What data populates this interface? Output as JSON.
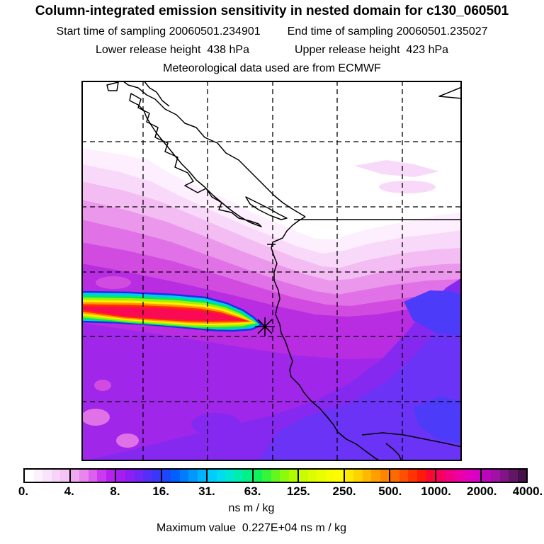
{
  "header": {
    "title": "Column-integrated emission sensitivity in nested domain for c130_060501",
    "start_time": "Start time of sampling 20060501.234901",
    "end_time": "End time of sampling 20060501.235027",
    "lower_release": "Lower release height  438 hPa",
    "upper_release": "Upper release height  423 hPa",
    "met_source": "Meteorological data used are from ECMWF"
  },
  "chart_data": {
    "type": "heatmap",
    "title": "Column-integrated emission sensitivity in nested domain for c130_060501",
    "field": "column-integrated emission sensitivity (FLEXPART footprint)",
    "units": "ns m / kg",
    "sampling": {
      "start": "20060501.234901",
      "end": "20060501.235027"
    },
    "release_heights_hPa": {
      "lower": 438,
      "upper": 423
    },
    "met_data_source": "ECMWF",
    "maximum_value": "0.227E+04",
    "maximum_value_label": "Maximum value  0.227E+04 ns m / kg",
    "colorbar": {
      "units": "ns m / kg",
      "boundaries": [
        0,
        4,
        8,
        16,
        31,
        63,
        125,
        250,
        500,
        1000,
        2000,
        4000
      ],
      "tick_labels": [
        "0.",
        "4.",
        "8.",
        "16.",
        "31.",
        "63.",
        "125.",
        "250.",
        "500.",
        "1000.",
        "2000.",
        "4000."
      ],
      "cells": [
        [
          "#ffffff",
          "#fdf1fd",
          "#fbe3fb",
          "#f8d3f8",
          "#f5c3f5"
        ],
        [
          "#f0a8f0",
          "#e886ee",
          "#dc60ee",
          "#cb3af0",
          "#b822f0"
        ],
        [
          "#a51df2",
          "#8e1ff4",
          "#7426f6",
          "#562ef8",
          "#3937fa"
        ],
        [
          "#1f46fc",
          "#0060ff",
          "#007cff",
          "#0098ff",
          "#00b4ff"
        ],
        [
          "#00cdfd",
          "#00dcf0",
          "#00e7d2",
          "#00eeac",
          "#00f184"
        ],
        [
          "#0ef35c",
          "#33f63a",
          "#62f81f",
          "#8cfa0c",
          "#b0fb00"
        ],
        [
          "#c8fc00",
          "#dcfd00",
          "#ebfe00",
          "#f7fe00",
          "#fffb00"
        ],
        [
          "#ffe900",
          "#ffd200",
          "#ffb900",
          "#ff9f00",
          "#ff8500"
        ],
        [
          "#ff6a00",
          "#ff4f00",
          "#ff3400",
          "#ff1a08",
          "#fb0736"
        ],
        [
          "#f7005e",
          "#f20083",
          "#ec00a0",
          "#e400b6",
          "#d800c4"
        ],
        [
          "#bc06bc",
          "#a011a6",
          "#821585",
          "#631566",
          "#451148"
        ]
      ]
    },
    "grid": {
      "style": "dashed",
      "n_vertical": 5,
      "n_horizontal": 5
    },
    "map_features": [
      "coastlines",
      "straight east-west political border line",
      "rivers in lower right",
      "asterisk release marker on coast"
    ],
    "plume": {
      "description": "narrow high-sensitivity plume extending west from the release marker to the left map edge",
      "layer_colors_outer_to_core": [
        "#1e2ee2",
        "#00c8f8",
        "#00e868",
        "#a2f200",
        "#ffee00",
        "#ff9500",
        "#ff2d00",
        "#fa0a55"
      ]
    },
    "field_colors_low_to_high_background": [
      "#ffffff",
      "#fdeffd",
      "#f9d9f9",
      "#f3bcf3",
      "#eb97eb",
      "#e071e6",
      "#d24be0",
      "#b82ce2",
      "#a026ea",
      "#8629f0",
      "#6b33f6",
      "#4d3bfa"
    ]
  }
}
